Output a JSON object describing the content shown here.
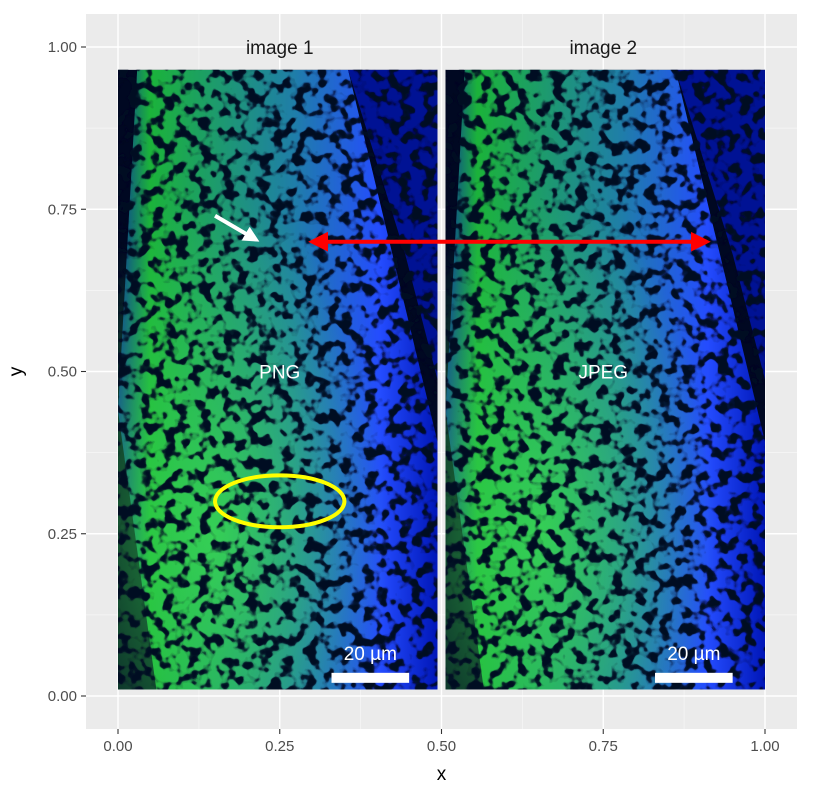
{
  "chart_data": {
    "type": "image-facets",
    "xlabel": "x",
    "ylabel": "y",
    "xlim": [
      0,
      1
    ],
    "ylim": [
      0,
      1
    ],
    "x_ticks": [
      0,
      0.25,
      0.5,
      0.75,
      1
    ],
    "x_tick_labels": [
      "0.00",
      "0.25",
      "0.50",
      "0.75",
      "1.00"
    ],
    "y_ticks": [
      0,
      0.25,
      0.5,
      0.75,
      1
    ],
    "y_tick_labels": [
      "0.00",
      "0.25",
      "0.50",
      "0.75",
      "1.00"
    ],
    "grid": true,
    "panels": [
      {
        "id": "left",
        "strip": "image 1",
        "label": "PNG",
        "label_pos": [
          0.25,
          0.5
        ],
        "image_x": [
          0,
          0.5
        ],
        "image_y": [
          0.01,
          0.965
        ],
        "scalebar": {
          "text": "20 µm",
          "x": [
            0.33,
            0.45
          ],
          "y": 0.028
        }
      },
      {
        "id": "right",
        "strip": "image 2",
        "label": "JPEG",
        "label_pos": [
          0.75,
          0.5
        ],
        "image_x": [
          0.5,
          1.0
        ],
        "image_y": [
          0.01,
          0.965
        ],
        "scalebar": {
          "text": "20 µm",
          "x": [
            0.83,
            0.95
          ],
          "y": 0.028
        }
      }
    ],
    "annotations": {
      "white_arrow": {
        "from": [
          0.15,
          0.74
        ],
        "to": [
          0.21,
          0.705
        ],
        "color": "#ffffff"
      },
      "red_double_arrow": {
        "from": [
          0.3,
          0.7
        ],
        "to": [
          0.91,
          0.7
        ],
        "color": "#ff0000"
      },
      "yellow_ellipse": {
        "center": [
          0.25,
          0.3
        ],
        "radius_x": 0.1,
        "radius_y": 0.04,
        "color": "#ffff00"
      }
    }
  },
  "colors": {
    "panel_background": "#ebebeb",
    "grid_major": "#ffffff",
    "image_dark": "#000822",
    "membrane_green": "#33d04a",
    "membrane_blue": "#2a56ff",
    "deep_blue": "#0014a8"
  }
}
